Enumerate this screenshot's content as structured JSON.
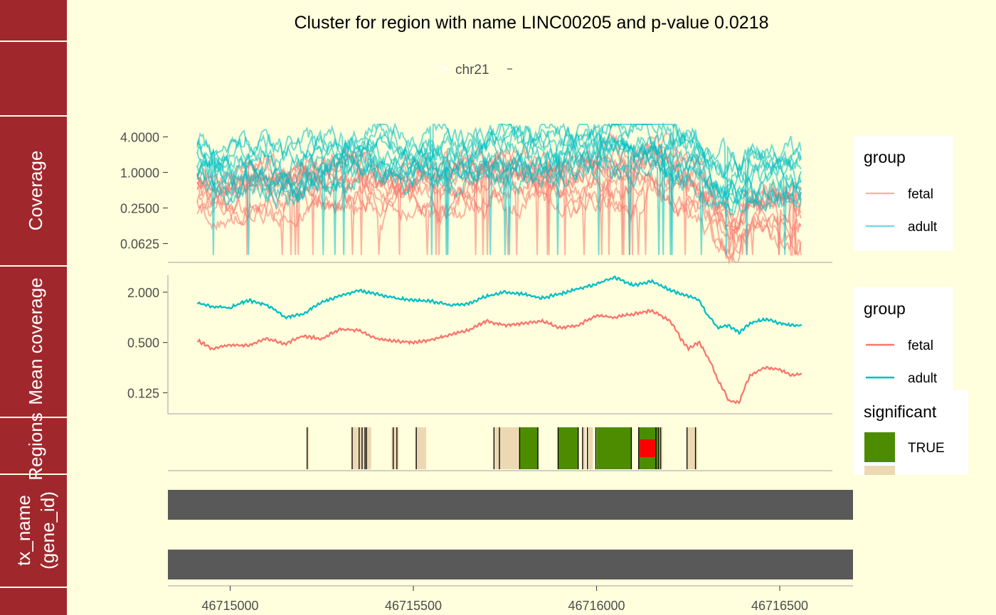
{
  "chart_data": {
    "type": "line",
    "title": "Cluster for region with name LINC00205 and p-value 0.0218",
    "chromosome": "chr21",
    "x_axis": {
      "ticks": [
        46715000,
        46715500,
        46716000,
        46716500
      ],
      "xlim": [
        46714830,
        46716700
      ],
      "data_range": [
        46714910,
        46716560
      ]
    },
    "track_labels": {
      "coverage": "Coverage",
      "mean": "Mean coverage",
      "regions": "Regions",
      "transcripts": "tx_name\n(gene_id)"
    },
    "coverage": {
      "ylabel": "Coverage",
      "scale": "log2",
      "ylim": [
        0.03,
        6.5
      ],
      "ticks": [
        "4.0000",
        "1.0000",
        "0.2500",
        "0.0625"
      ],
      "tick_values": [
        4,
        1,
        0.25,
        0.0625
      ],
      "legend": {
        "title": "group",
        "entries": [
          "fetal",
          "adult"
        ]
      },
      "groups": [
        {
          "name": "fetal",
          "color": "#F8766D",
          "samples": 10,
          "base": 0.55,
          "spread": 0.35
        },
        {
          "name": "adult",
          "color": "#00BFC4",
          "samples": 11,
          "base": 1.8,
          "spread": 0.25
        }
      ]
    },
    "mean_coverage": {
      "ylabel": "Mean coverage",
      "scale": "log2",
      "ylim": [
        0.07,
        3.2
      ],
      "ticks": [
        "2.000",
        "0.500",
        "0.125"
      ],
      "tick_values": [
        2,
        0.5,
        0.125
      ],
      "legend": {
        "title": "group",
        "entries": [
          "fetal",
          "adult"
        ]
      },
      "series": [
        {
          "name": "fetal",
          "color": "#F8766D",
          "points": [
            [
              46714910,
              0.53
            ],
            [
              46714950,
              0.42
            ],
            [
              46715000,
              0.47
            ],
            [
              46715050,
              0.46
            ],
            [
              46715100,
              0.56
            ],
            [
              46715150,
              0.48
            ],
            [
              46715200,
              0.6
            ],
            [
              46715250,
              0.55
            ],
            [
              46715300,
              0.72
            ],
            [
              46715350,
              0.7
            ],
            [
              46715400,
              0.55
            ],
            [
              46715450,
              0.52
            ],
            [
              46715500,
              0.5
            ],
            [
              46715550,
              0.54
            ],
            [
              46715600,
              0.62
            ],
            [
              46715650,
              0.7
            ],
            [
              46715700,
              0.9
            ],
            [
              46715750,
              0.8
            ],
            [
              46715800,
              0.85
            ],
            [
              46715850,
              0.9
            ],
            [
              46715900,
              0.75
            ],
            [
              46715950,
              0.8
            ],
            [
              46716000,
              1.05
            ],
            [
              46716050,
              1.0
            ],
            [
              46716100,
              1.1
            ],
            [
              46716150,
              1.2
            ],
            [
              46716200,
              0.9
            ],
            [
              46716230,
              0.55
            ],
            [
              46716250,
              0.42
            ],
            [
              46716280,
              0.5
            ],
            [
              46716300,
              0.35
            ],
            [
              46716330,
              0.18
            ],
            [
              46716360,
              0.1
            ],
            [
              46716390,
              0.095
            ],
            [
              46716420,
              0.2
            ],
            [
              46716460,
              0.25
            ],
            [
              46716500,
              0.24
            ],
            [
              46716530,
              0.2
            ],
            [
              46716560,
              0.21
            ]
          ]
        },
        {
          "name": "adult",
          "color": "#00BFC4",
          "points": [
            [
              46714910,
              1.5
            ],
            [
              46714950,
              1.35
            ],
            [
              46715000,
              1.3
            ],
            [
              46715050,
              1.6
            ],
            [
              46715100,
              1.4
            ],
            [
              46715150,
              1.0
            ],
            [
              46715200,
              1.1
            ],
            [
              46715250,
              1.5
            ],
            [
              46715300,
              1.8
            ],
            [
              46715350,
              2.1
            ],
            [
              46715400,
              1.9
            ],
            [
              46715450,
              1.7
            ],
            [
              46715500,
              1.6
            ],
            [
              46715550,
              1.55
            ],
            [
              46715600,
              1.4
            ],
            [
              46715650,
              1.45
            ],
            [
              46715700,
              1.8
            ],
            [
              46715750,
              2.0
            ],
            [
              46715800,
              1.9
            ],
            [
              46715850,
              1.7
            ],
            [
              46715900,
              1.9
            ],
            [
              46715950,
              2.2
            ],
            [
              46716000,
              2.5
            ],
            [
              46716050,
              3.0
            ],
            [
              46716100,
              2.4
            ],
            [
              46716150,
              2.7
            ],
            [
              46716200,
              2.1
            ],
            [
              46716250,
              1.8
            ],
            [
              46716280,
              1.6
            ],
            [
              46716300,
              1.1
            ],
            [
              46716330,
              0.75
            ],
            [
              46716360,
              0.8
            ],
            [
              46716390,
              0.65
            ],
            [
              46716420,
              0.85
            ],
            [
              46716460,
              0.95
            ],
            [
              46716500,
              0.85
            ],
            [
              46716530,
              0.8
            ],
            [
              46716560,
              0.8
            ]
          ]
        }
      ]
    },
    "regions": {
      "ylabel": "Regions",
      "legend": {
        "title": "significant",
        "entries": [
          "TRUE",
          "FALSE"
        ]
      },
      "colors": {
        "TRUE": "#4D8C00",
        "FALSE": "#ECD9B3",
        "highlight": "#FF0000",
        "border": "#000000"
      },
      "blocks": [
        {
          "start": 46715210,
          "end": 46715215,
          "significant": false
        },
        {
          "start": 46715330,
          "end": 46715385,
          "significant": false
        },
        {
          "start": 46715440,
          "end": 46715460,
          "significant": false
        },
        {
          "start": 46715505,
          "end": 46715535,
          "significant": false
        },
        {
          "start": 46715720,
          "end": 46715790,
          "significant": false
        },
        {
          "start": 46715790,
          "end": 46715840,
          "significant": true
        },
        {
          "start": 46715895,
          "end": 46715950,
          "significant": true
        },
        {
          "start": 46715960,
          "end": 46715970,
          "significant": false
        },
        {
          "start": 46715975,
          "end": 46715990,
          "significant": false
        },
        {
          "start": 46716000,
          "end": 46716095,
          "significant": true
        },
        {
          "start": 46716115,
          "end": 46716170,
          "significant": true
        },
        {
          "start": 46716170,
          "end": 46716180,
          "significant": false
        },
        {
          "start": 46716245,
          "end": 46716275,
          "significant": false
        }
      ],
      "highlight": {
        "start": 46716118,
        "end": 46716160
      },
      "boundaries": [
        46715210,
        46715333,
        46715352,
        46715360,
        46715368,
        46715372,
        46715445,
        46715455,
        46715508,
        46715720,
        46715735,
        46715790,
        46715840,
        46715895,
        46715950,
        46715962,
        46715975,
        46715998,
        46716095,
        46716115,
        46716162,
        46716170,
        46716175,
        46716247,
        46716270
      ]
    },
    "transcripts": {
      "ylabel": "tx_name\n(gene_id)",
      "color": "#595959",
      "bars": [
        {
          "start": 46714830,
          "end": 46716700
        },
        {
          "start": 46714830,
          "end": 46716700
        }
      ]
    }
  }
}
